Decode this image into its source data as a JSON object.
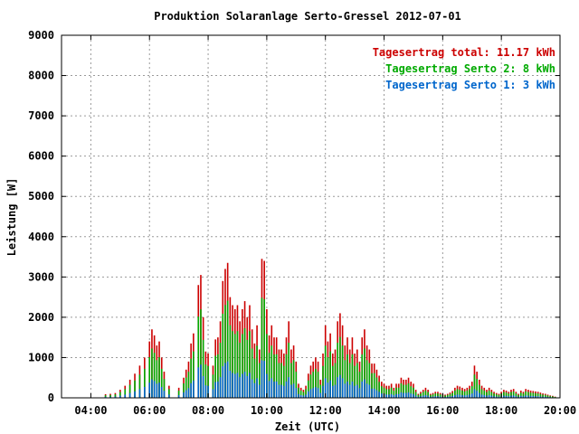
{
  "chart_data": {
    "type": "bar",
    "title": "Produktion Solaranlage Serto-Gressel 2012-07-01",
    "xlabel": "Zeit (UTC)",
    "ylabel": "Leistung [W]",
    "xlim": [
      "03:00",
      "20:00"
    ],
    "ylim": [
      0,
      9000
    ],
    "x_ticks": [
      "04:00",
      "06:00",
      "08:00",
      "10:00",
      "12:00",
      "14:00",
      "16:00",
      "18:00",
      "20:00"
    ],
    "y_ticks": [
      "0",
      "1000",
      "2000",
      "3000",
      "4000",
      "5000",
      "6000",
      "7000",
      "8000",
      "9000"
    ],
    "grid": true,
    "legend_position": "top-right",
    "legend": [
      {
        "text": "Tagesertrag total: 11.17 kWh",
        "color": "#cc0000"
      },
      {
        "text": "Tagesertrag Serto 2: 8 kWh",
        "color": "#00aa00"
      },
      {
        "text": "Tagesertrag Serto 1: 3 kWh",
        "color": "#0066cc"
      }
    ],
    "series": [
      {
        "name": "Tagesertrag total: 11.17 kWh",
        "color": "#cc0000",
        "points": [
          [
            "04:30",
            90
          ],
          [
            "04:40",
            100
          ],
          [
            "04:50",
            120
          ],
          [
            "05:00",
            200
          ],
          [
            "05:10",
            300
          ],
          [
            "05:20",
            450
          ],
          [
            "05:30",
            600
          ],
          [
            "05:40",
            800
          ],
          [
            "05:50",
            1000
          ],
          [
            "06:00",
            1400
          ],
          [
            "06:05",
            1700
          ],
          [
            "06:10",
            1550
          ],
          [
            "06:15",
            1300
          ],
          [
            "06:20",
            1400
          ],
          [
            "06:25",
            1000
          ],
          [
            "06:30",
            650
          ],
          [
            "06:40",
            300
          ],
          [
            "07:00",
            250
          ],
          [
            "07:10",
            500
          ],
          [
            "07:15",
            700
          ],
          [
            "07:20",
            900
          ],
          [
            "07:25",
            1350
          ],
          [
            "07:30",
            1600
          ],
          [
            "07:40",
            2800
          ],
          [
            "07:45",
            3050
          ],
          [
            "07:50",
            2000
          ],
          [
            "07:55",
            1150
          ],
          [
            "08:00",
            1100
          ],
          [
            "08:10",
            800
          ],
          [
            "08:15",
            1450
          ],
          [
            "08:20",
            1500
          ],
          [
            "08:25",
            1900
          ],
          [
            "08:30",
            2900
          ],
          [
            "08:35",
            3200
          ],
          [
            "08:40",
            3350
          ],
          [
            "08:45",
            2500
          ],
          [
            "08:50",
            2300
          ],
          [
            "08:55",
            2200
          ],
          [
            "09:00",
            2300
          ],
          [
            "09:05",
            1900
          ],
          [
            "09:10",
            2200
          ],
          [
            "09:15",
            2400
          ],
          [
            "09:20",
            2000
          ],
          [
            "09:25",
            2300
          ],
          [
            "09:30",
            1700
          ],
          [
            "09:35",
            1350
          ],
          [
            "09:40",
            1800
          ],
          [
            "09:45",
            1200
          ],
          [
            "09:50",
            3450
          ],
          [
            "09:55",
            3400
          ],
          [
            "10:00",
            2200
          ],
          [
            "10:05",
            1550
          ],
          [
            "10:10",
            1800
          ],
          [
            "10:15",
            1500
          ],
          [
            "10:20",
            1500
          ],
          [
            "10:25",
            1200
          ],
          [
            "10:30",
            1200
          ],
          [
            "10:35",
            1100
          ],
          [
            "10:40",
            1500
          ],
          [
            "10:45",
            1900
          ],
          [
            "10:50",
            1200
          ],
          [
            "10:55",
            1300
          ],
          [
            "11:00",
            900
          ],
          [
            "11:05",
            350
          ],
          [
            "11:10",
            250
          ],
          [
            "11:15",
            200
          ],
          [
            "11:20",
            300
          ],
          [
            "11:25",
            600
          ],
          [
            "11:30",
            800
          ],
          [
            "11:35",
            900
          ],
          [
            "11:40",
            1000
          ],
          [
            "11:45",
            900
          ],
          [
            "11:50",
            450
          ],
          [
            "11:55",
            1100
          ],
          [
            "12:00",
            1800
          ],
          [
            "12:05",
            1400
          ],
          [
            "12:10",
            1600
          ],
          [
            "12:15",
            1100
          ],
          [
            "12:20",
            1200
          ],
          [
            "12:25",
            1900
          ],
          [
            "12:30",
            2100
          ],
          [
            "12:35",
            1800
          ],
          [
            "12:40",
            1300
          ],
          [
            "12:45",
            1500
          ],
          [
            "12:50",
            1200
          ],
          [
            "12:55",
            1500
          ],
          [
            "13:00",
            1100
          ],
          [
            "13:05",
            1200
          ],
          [
            "13:10",
            900
          ],
          [
            "13:15",
            1500
          ],
          [
            "13:20",
            1700
          ],
          [
            "13:25",
            1300
          ],
          [
            "13:30",
            1200
          ],
          [
            "13:35",
            850
          ],
          [
            "13:40",
            850
          ],
          [
            "13:45",
            700
          ],
          [
            "13:50",
            550
          ],
          [
            "13:55",
            400
          ],
          [
            "14:00",
            350
          ],
          [
            "14:05",
            300
          ],
          [
            "14:10",
            300
          ],
          [
            "14:15",
            350
          ],
          [
            "14:20",
            250
          ],
          [
            "14:25",
            350
          ],
          [
            "14:30",
            350
          ],
          [
            "14:35",
            500
          ],
          [
            "14:40",
            450
          ],
          [
            "14:45",
            450
          ],
          [
            "14:50",
            500
          ],
          [
            "14:55",
            400
          ],
          [
            "15:00",
            350
          ],
          [
            "15:05",
            200
          ],
          [
            "15:10",
            100
          ],
          [
            "15:15",
            150
          ],
          [
            "15:20",
            200
          ],
          [
            "15:25",
            250
          ],
          [
            "15:30",
            200
          ],
          [
            "15:35",
            100
          ],
          [
            "15:40",
            120
          ],
          [
            "15:45",
            150
          ],
          [
            "15:50",
            150
          ],
          [
            "15:55",
            120
          ],
          [
            "16:00",
            100
          ],
          [
            "16:05",
            80
          ],
          [
            "16:10",
            100
          ],
          [
            "16:15",
            130
          ],
          [
            "16:20",
            170
          ],
          [
            "16:25",
            250
          ],
          [
            "16:30",
            300
          ],
          [
            "16:35",
            280
          ],
          [
            "16:40",
            250
          ],
          [
            "16:45",
            220
          ],
          [
            "16:50",
            250
          ],
          [
            "16:55",
            300
          ],
          [
            "17:00",
            400
          ],
          [
            "17:05",
            800
          ],
          [
            "17:10",
            650
          ],
          [
            "17:15",
            450
          ],
          [
            "17:20",
            300
          ],
          [
            "17:25",
            250
          ],
          [
            "17:30",
            200
          ],
          [
            "17:35",
            250
          ],
          [
            "17:40",
            200
          ],
          [
            "17:45",
            150
          ],
          [
            "17:50",
            120
          ],
          [
            "17:55",
            100
          ],
          [
            "18:00",
            150
          ],
          [
            "18:05",
            200
          ],
          [
            "18:10",
            180
          ],
          [
            "18:15",
            150
          ],
          [
            "18:20",
            200
          ],
          [
            "18:25",
            220
          ],
          [
            "18:30",
            150
          ],
          [
            "18:35",
            100
          ],
          [
            "18:40",
            180
          ],
          [
            "18:45",
            150
          ],
          [
            "18:50",
            220
          ],
          [
            "18:55",
            200
          ],
          [
            "19:00",
            180
          ],
          [
            "19:05",
            170
          ],
          [
            "19:10",
            160
          ],
          [
            "19:15",
            150
          ],
          [
            "19:20",
            130
          ],
          [
            "19:25",
            110
          ],
          [
            "19:30",
            100
          ],
          [
            "19:35",
            80
          ],
          [
            "19:40",
            60
          ],
          [
            "19:45",
            50
          ],
          [
            "19:50",
            30
          ]
        ]
      },
      {
        "name": "Tagesertrag Serto 2: 8 kWh",
        "color": "#00aa00",
        "ratio": 0.72
      },
      {
        "name": "Tagesertrag Serto 1: 3 kWh",
        "color": "#0066cc",
        "ratio": 0.27
      }
    ]
  }
}
